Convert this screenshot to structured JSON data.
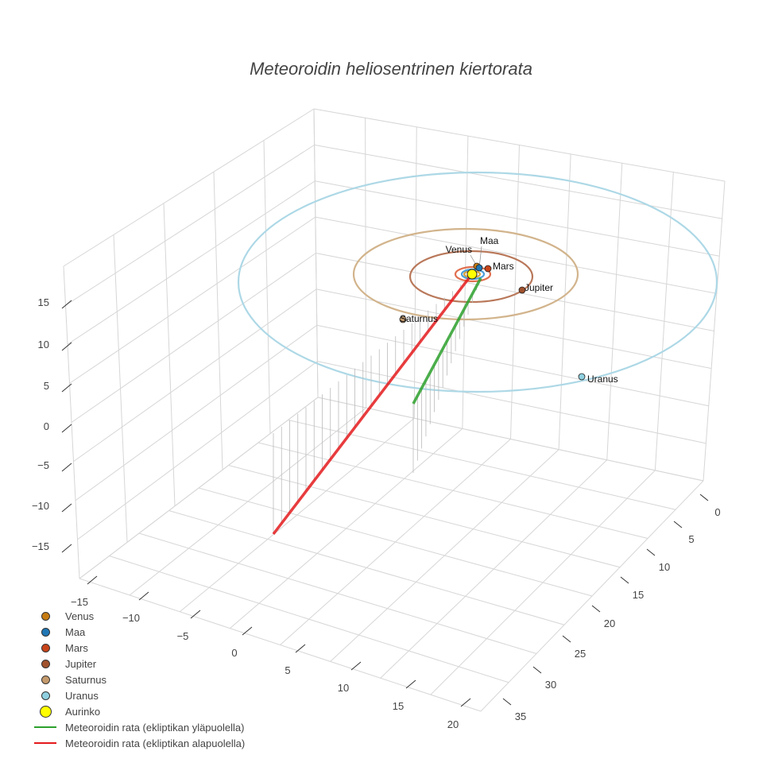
{
  "chart_data": {
    "type": "scatter3d",
    "title": "Meteoroidin heliosentrinen kiertorata",
    "x_ticks": [
      "−15",
      "−10",
      "−5",
      "0",
      "5",
      "10",
      "15",
      "20"
    ],
    "y_ticks": [
      "0",
      "5",
      "10",
      "15",
      "20",
      "25",
      "30",
      "35"
    ],
    "z_ticks": [
      "15",
      "10",
      "5",
      "0",
      "−5",
      "−10",
      "−15"
    ],
    "planets": [
      {
        "name": "Venus",
        "color": "#c77c12",
        "orbit_color": "#d9a441"
      },
      {
        "name": "Maa",
        "color": "#1f77b4",
        "orbit_color": "#4a9fd8"
      },
      {
        "name": "Mars",
        "color": "#c8441a",
        "orbit_color": "#e07050"
      },
      {
        "name": "Jupiter",
        "color": "#a0522d",
        "orbit_color": "#b9785a"
      },
      {
        "name": "Saturnus",
        "color": "#c49a6c",
        "orbit_color": "#d2b48c"
      },
      {
        "name": "Uranus",
        "color": "#8fd0e0",
        "orbit_color": "#add8e6"
      }
    ],
    "sun": {
      "name": "Aurinko",
      "color": "#ffff00"
    },
    "trajectories": [
      {
        "name": "Meteoroidin rata (ekliptikan yläpuolella)",
        "color": "#2ca02c"
      },
      {
        "name": "Meteoroidin rata (ekliptikan alapuolella)",
        "color": "#e41a1c"
      }
    ]
  }
}
